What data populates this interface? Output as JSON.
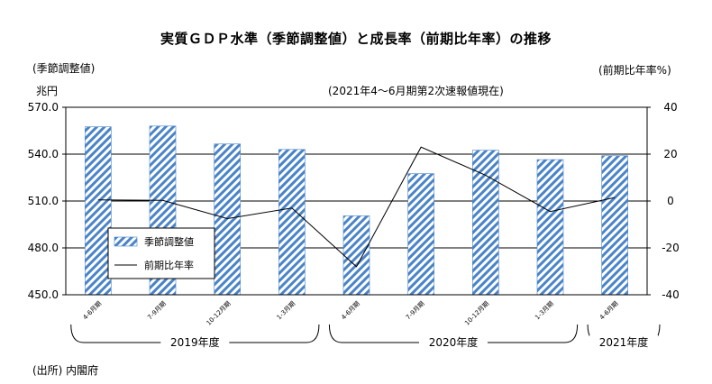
{
  "title": "実質ＧＤＰ水準（季節調整値）と成長率（前期比年率）の推移",
  "left_axis_caption": "(季節調整値)",
  "left_axis_unit": "兆円",
  "right_axis_caption": "(前期比年率%)",
  "note": "(2021年4～6月期第2次速報値現在)",
  "source": "(出所) 内閣府",
  "chart_data": {
    "type": "bar",
    "categories": [
      "4-6月期",
      "7-9月期",
      "10-12月期",
      "1-3月期",
      "4-6月期",
      "7-9月期",
      "10-12月期",
      "1-3月期",
      "4-6月期"
    ],
    "year_groups": [
      {
        "label": "2019年度",
        "start": 0,
        "end": 3
      },
      {
        "label": "2020年度",
        "start": 4,
        "end": 7
      },
      {
        "label": "2021年度",
        "start": 8,
        "end": 8
      }
    ],
    "series": [
      {
        "name": "季節調整値",
        "axis": "left",
        "kind": "bar",
        "values": [
          557.5,
          558.0,
          546.5,
          543.0,
          500.5,
          527.5,
          542.5,
          536.5,
          539.0
        ]
      },
      {
        "name": "前期比年率",
        "axis": "right",
        "kind": "line",
        "values": [
          0.5,
          0.3,
          -7.5,
          -3.0,
          -28.0,
          23.0,
          11.0,
          -4.5,
          1.5
        ]
      }
    ],
    "left_ylim": [
      450,
      570
    ],
    "left_ticks": [
      "570.0",
      "540.0",
      "510.0",
      "480.0",
      "450.0"
    ],
    "right_ylim": [
      -40,
      40
    ],
    "right_ticks": [
      "40",
      "20",
      "0",
      "-20",
      "-40"
    ],
    "legend_placement": "lower-left"
  }
}
